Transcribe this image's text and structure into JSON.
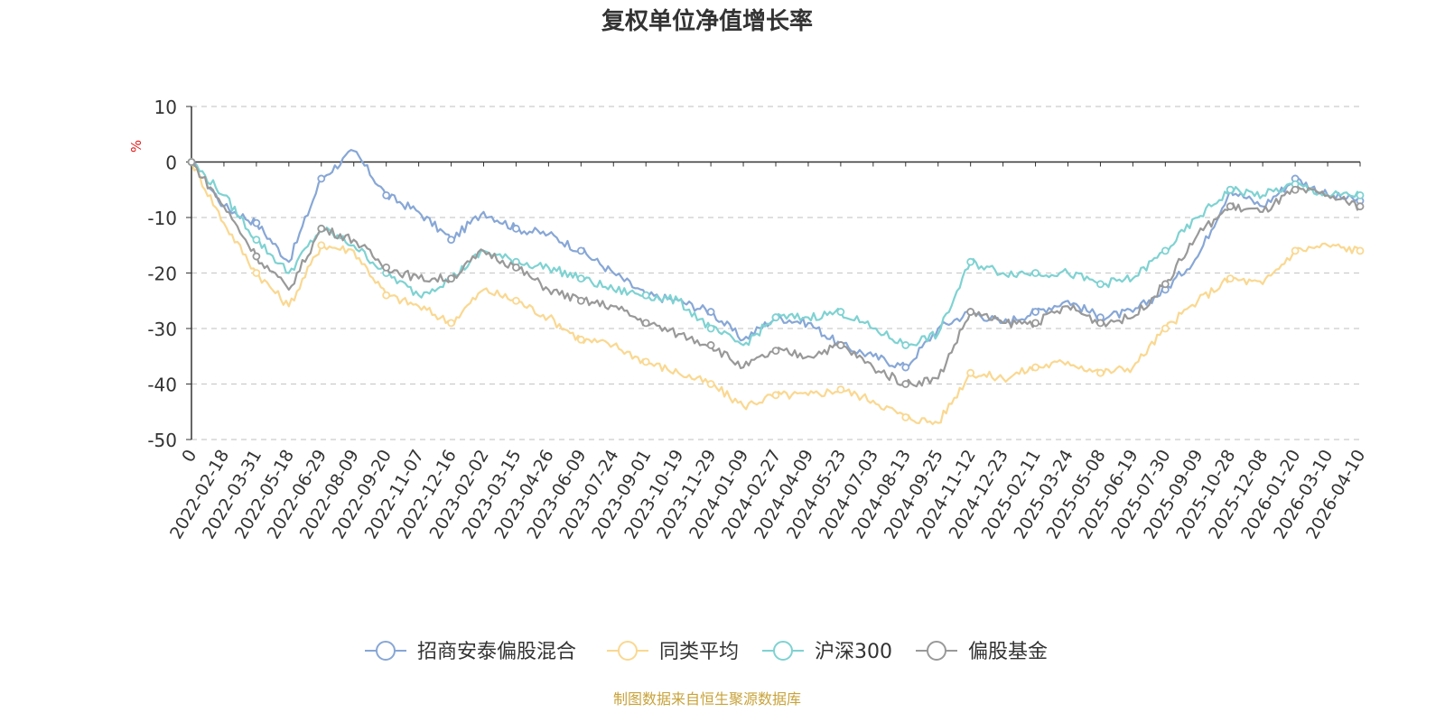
{
  "chart_data": {
    "type": "line",
    "title": "复权单位净值增长率",
    "ylabel": "%",
    "ylim": [
      -50,
      10
    ],
    "yticks": [
      10,
      0,
      -10,
      -20,
      -30,
      -40,
      -50
    ],
    "grid": true,
    "legend_position": "bottom",
    "source": "制图数据来自恒生聚源数据库",
    "x": [
      "0",
      "2022-02-18",
      "2022-03-31",
      "2022-05-18",
      "2022-06-29",
      "2022-08-09",
      "2022-09-20",
      "2022-11-07",
      "2022-12-16",
      "2023-02-02",
      "2023-03-15",
      "2023-04-26",
      "2023-06-09",
      "2023-07-24",
      "2023-09-01",
      "2023-10-19",
      "2023-11-29",
      "2024-01-09",
      "2024-02-27",
      "2024-04-09",
      "2024-05-23",
      "2024-07-03",
      "2024-08-13",
      "2024-09-25",
      "2024-11-12",
      "2024-12-23",
      "2025-02-11",
      "2025-03-24",
      "2025-05-08",
      "2025-06-19",
      "2025-07-30",
      "2025-09-09",
      "2025-10-28",
      "2025-12-08",
      "2026-01-20",
      "2026-03-10",
      "2026-04-10"
    ],
    "series": [
      {
        "name": "招商安泰偏股混合",
        "color": "#87a7d6",
        "values": [
          0,
          -8,
          -11,
          -18,
          -3,
          2,
          -6,
          -9,
          -14,
          -9,
          -12,
          -13,
          -16,
          -20,
          -24,
          -25,
          -27,
          -32,
          -28,
          -29,
          -33,
          -35,
          -37,
          -30,
          -27,
          -29,
          -27,
          -25,
          -28,
          -27,
          -23,
          -17,
          -5,
          -8,
          -3,
          -6,
          -7
        ]
      },
      {
        "name": "同类平均",
        "color": "#fad891",
        "values": [
          0,
          -11,
          -20,
          -26,
          -15,
          -16,
          -24,
          -26,
          -29,
          -23,
          -25,
          -28,
          -32,
          -33,
          -36,
          -38,
          -40,
          -44,
          -42,
          -42,
          -41,
          -43,
          -46,
          -47,
          -38,
          -39,
          -37,
          -36,
          -38,
          -37,
          -30,
          -25,
          -21,
          -22,
          -16,
          -15,
          -16
        ]
      },
      {
        "name": "沪深300",
        "color": "#7fd2d2",
        "values": [
          0,
          -6,
          -14,
          -20,
          -12,
          -15,
          -20,
          -24,
          -21,
          -16,
          -18,
          -19,
          -21,
          -23,
          -24,
          -25,
          -30,
          -33,
          -28,
          -28,
          -27,
          -30,
          -33,
          -31,
          -18,
          -20,
          -20,
          -20,
          -22,
          -21,
          -16,
          -10,
          -5,
          -6,
          -4,
          -6,
          -6
        ]
      },
      {
        "name": "偏股基金",
        "color": "#999999",
        "values": [
          0,
          -8,
          -17,
          -23,
          -12,
          -14,
          -19,
          -21,
          -21,
          -16,
          -19,
          -23,
          -25,
          -26,
          -29,
          -31,
          -33,
          -37,
          -34,
          -35,
          -33,
          -37,
          -40,
          -39,
          -27,
          -29,
          -29,
          -26,
          -29,
          -28,
          -22,
          -13,
          -8,
          -9,
          -5,
          -6,
          -8
        ]
      }
    ]
  }
}
